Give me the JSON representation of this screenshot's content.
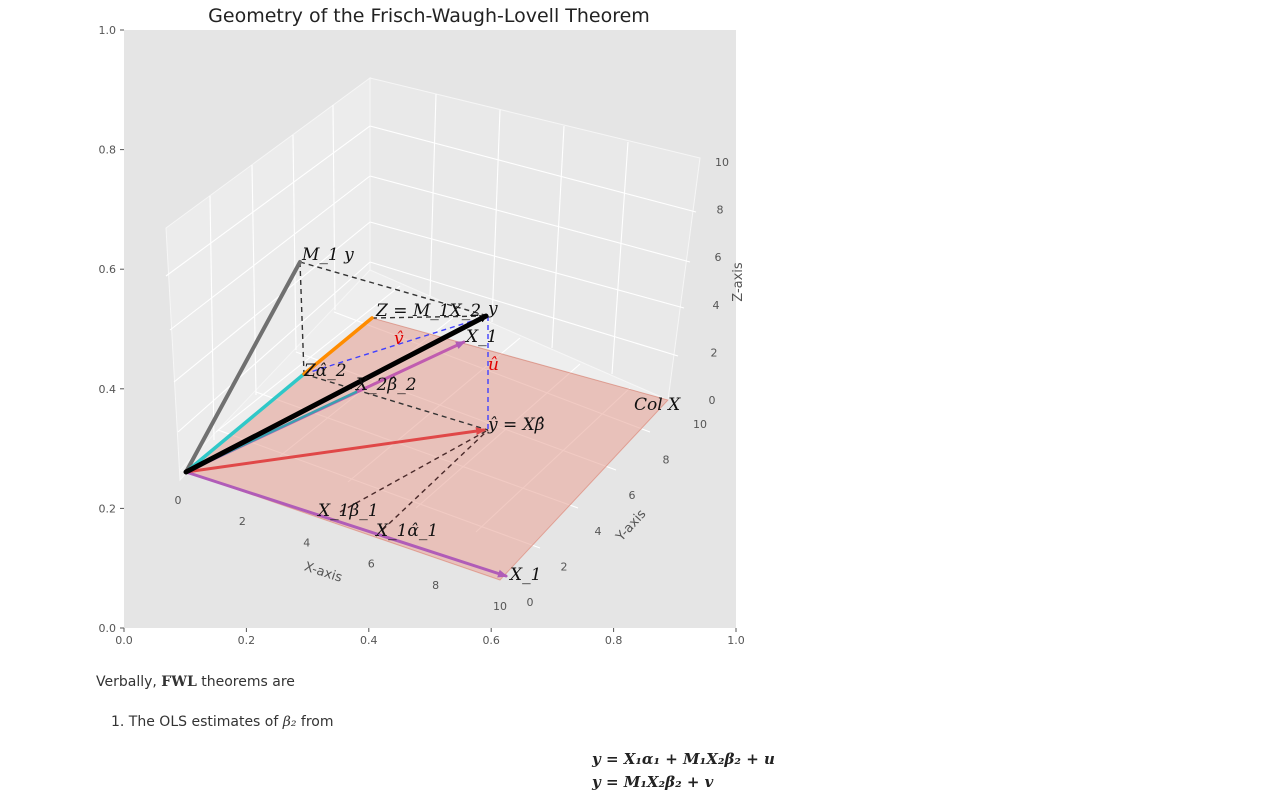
{
  "chart_data": [
    {
      "type": "line",
      "subtype": "2d-axes-frame",
      "title": "Geometry of the Frisch-Waugh-Lovell Theorem",
      "xlim": [
        0.0,
        1.0
      ],
      "ylim": [
        0.0,
        1.0
      ],
      "x_ticks": [
        "0.0",
        "0.2",
        "0.4",
        "0.6",
        "0.8",
        "1.0"
      ],
      "y_ticks": [
        "0.0",
        "0.2",
        "0.4",
        "0.6",
        "0.8",
        "1.0"
      ],
      "background": "#e5e5e5",
      "grid": false
    },
    {
      "type": "3d-vector",
      "xlabel": "X-axis",
      "ylabel": "Y-axis",
      "zlabel": "Z-axis",
      "xlim": [
        0,
        10
      ],
      "ylim": [
        0,
        10
      ],
      "zlim": [
        0,
        10
      ],
      "x_ticks": [
        "0",
        "2",
        "4",
        "6",
        "8",
        "10"
      ],
      "y_ticks": [
        "0",
        "2",
        "4",
        "6",
        "8",
        "10"
      ],
      "z_ticks": [
        "0",
        "2",
        "4",
        "6",
        "8",
        "10"
      ],
      "grid": true,
      "plane": {
        "label": "Col X",
        "color": "#e0897a"
      },
      "vectors": [
        {
          "label": "y",
          "to": [
            10,
            8,
            5
          ],
          "color": "#000000"
        },
        {
          "label": "X_1",
          "to": [
            10,
            0,
            0
          ],
          "color": "#b05cb8"
        },
        {
          "label": "X_2",
          "to": [
            8,
            8,
            0
          ],
          "color": "#c05cb0"
        },
        {
          "label": "ŷ = Xβ̂",
          "to": [
            10,
            8,
            0
          ],
          "color": "#e04848"
        },
        {
          "label": "M_1 y",
          "to": [
            0,
            8,
            5
          ],
          "color": "#707070"
        },
        {
          "label": "Z = M_1X_2",
          "to": [
            0,
            8,
            0
          ],
          "color": "#ff8c00"
        },
        {
          "label": "Zα̂_2",
          "to": [
            0,
            4.2,
            0
          ],
          "color": "#30c8c8"
        },
        {
          "label": "X_2β̂_2",
          "to": [
            2,
            4.2,
            0
          ],
          "color": "#3aa0b0"
        },
        {
          "label": "X_1β̂_1",
          "to": [
            8,
            0,
            0
          ],
          "color": "#b05cb8"
        },
        {
          "label": "X_1α̂_1",
          "to": [
            10,
            0,
            0
          ],
          "color": "#b05cb8"
        }
      ],
      "residuals": [
        {
          "label": "v̂",
          "color": "#e00000"
        },
        {
          "label": "û",
          "color": "#e00000"
        }
      ]
    }
  ],
  "text": {
    "verbally_prefix": "Verbally, ",
    "verbally_bold": "FWL",
    "verbally_suffix": " theorems are",
    "item1_prefix": "1. The OLS estimates of ",
    "item1_symbol": "β₂",
    "item1_suffix": " from",
    "eq1": "y = X₁α₁ + M₁X₂β₂ + u",
    "eq2": "y = M₁X₂β₂ + v"
  }
}
